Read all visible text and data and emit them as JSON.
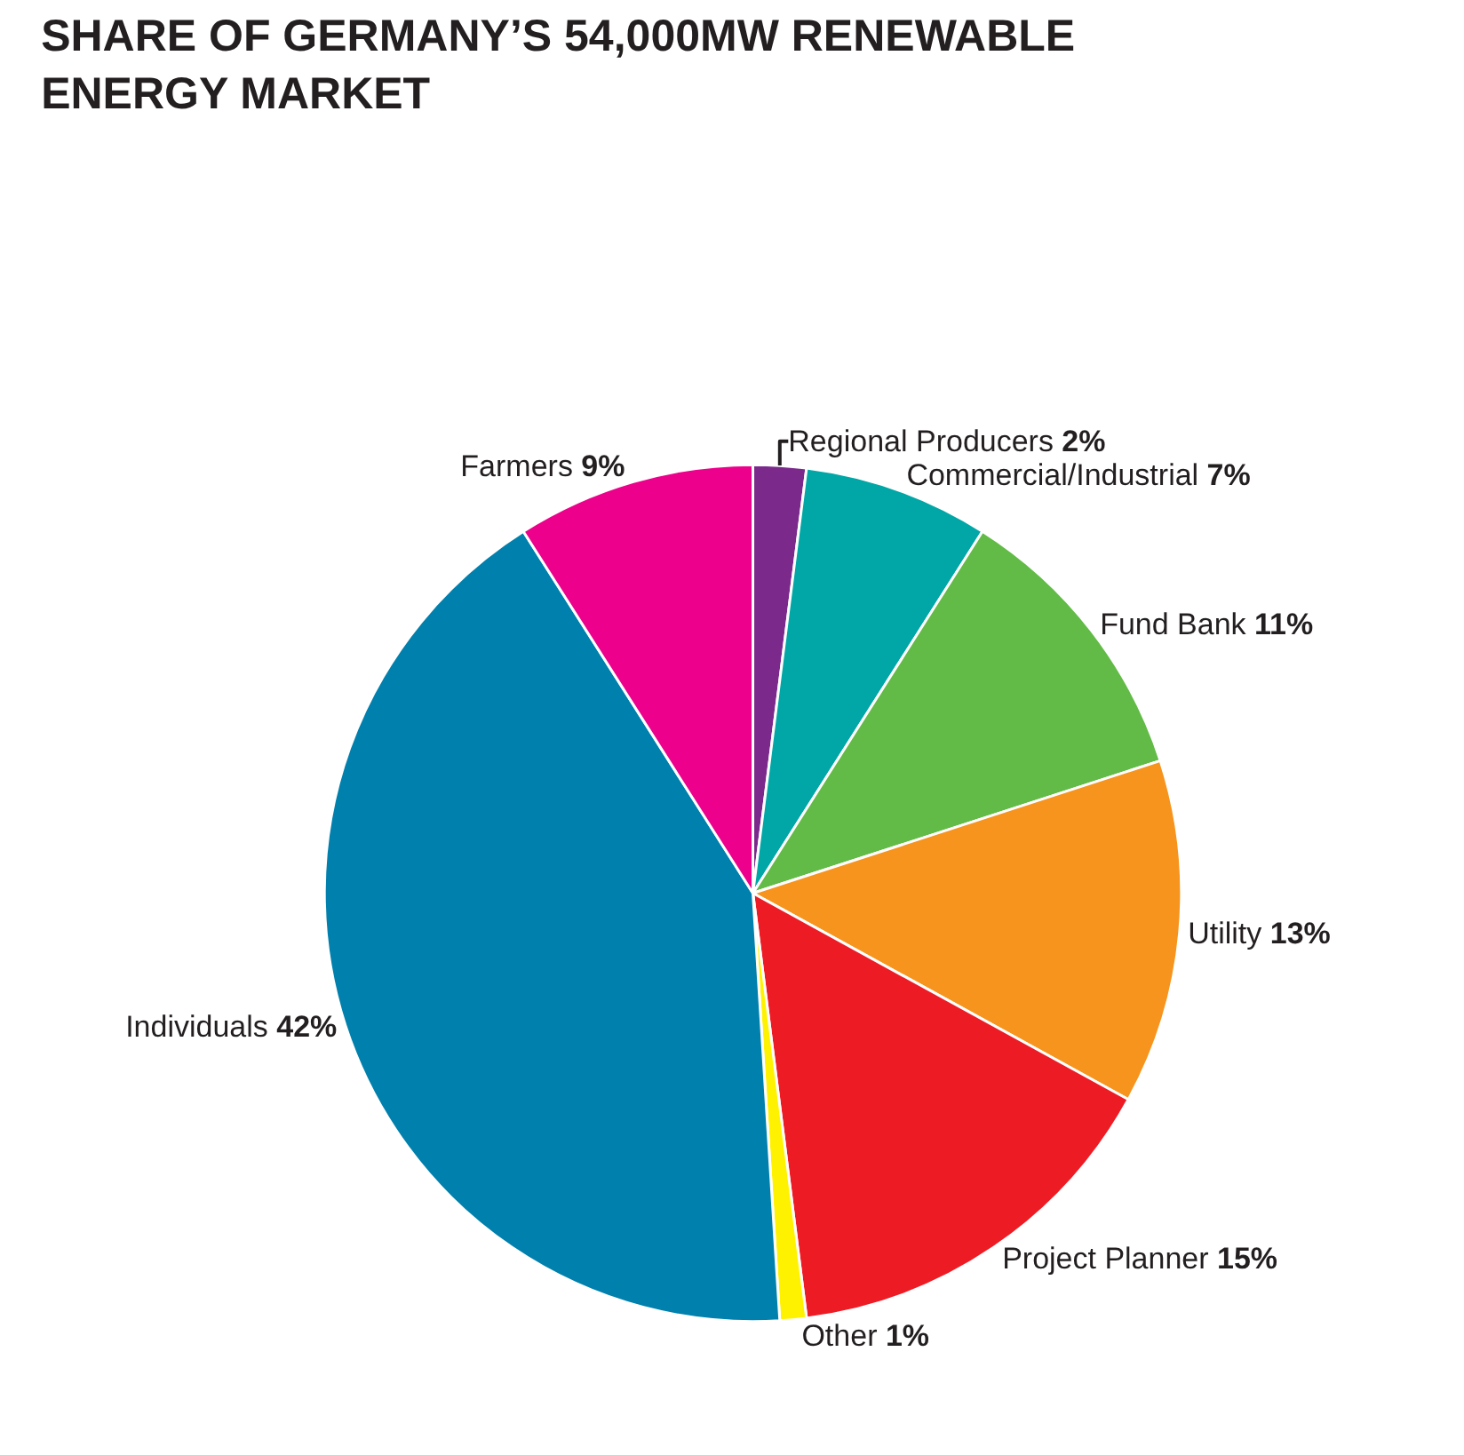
{
  "chart_data": {
    "type": "pie",
    "title": "SHARE OF GERMANY’S 54,000MW RENEWABLE ENERGY MARKET",
    "categories": [
      "Regional Producers",
      "Commercial/Industrial",
      "Fund Bank",
      "Utility",
      "Project Planner",
      "Other",
      "Individuals",
      "Farmers"
    ],
    "values": [
      2,
      7,
      11,
      13,
      15,
      1,
      42,
      9
    ],
    "value_labels": [
      "2%",
      "7%",
      "11%",
      "13%",
      "15%",
      "1%",
      "42%",
      "9%"
    ],
    "colors": [
      "#7b2a8c",
      "#00a7a6",
      "#62bb46",
      "#f7941d",
      "#ed1c24",
      "#fff200",
      "#0080ad",
      "#ec008c"
    ],
    "legend": false
  }
}
